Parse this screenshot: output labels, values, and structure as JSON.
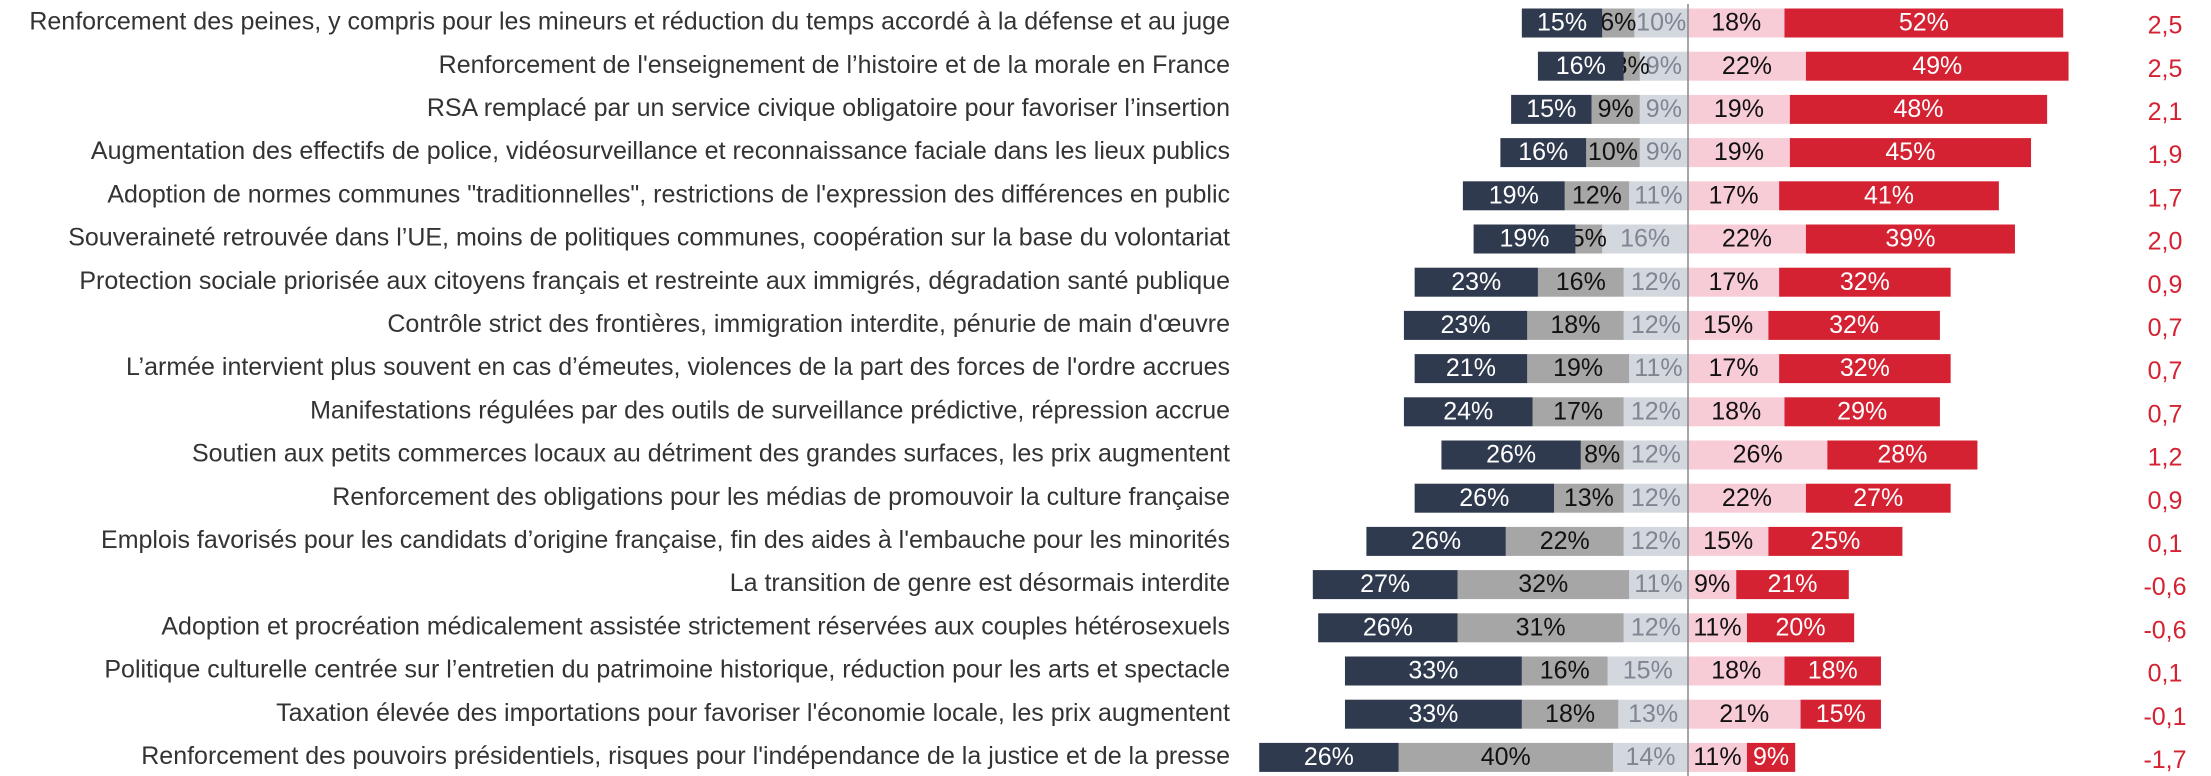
{
  "chart_data": {
    "type": "diverging_bar",
    "categories": [
      "Renforcement des peines, y compris pour les mineurs et réduction du temps accordé à la défense et au juge",
      "Renforcement de l'enseignement de l’histoire et de la morale en France",
      "RSA remplacé par un service civique obligatoire pour favoriser l’insertion",
      "Augmentation des effectifs de police, vidéosurveillance et reconnaissance faciale dans les lieux publics",
      "Adoption de normes communes \"traditionnelles\", restrictions de l'expression des différences en public",
      "Souveraineté retrouvée dans l’UE, moins de politiques communes, coopération sur la base du volontariat",
      "Protection sociale priorisée aux citoyens français et restreinte aux immigrés, dégradation santé publique",
      "Contrôle strict des frontières, immigration interdite, pénurie de main d'œuvre",
      "L’armée intervient plus souvent en cas d’émeutes, violences de la part des forces de l'ordre accrues",
      "Manifestations régulées par des outils de surveillance prédictive, répression accrue",
      "Soutien aux petits commerces locaux au détriment des grandes surfaces, les prix augmentent",
      "Renforcement des obligations pour les médias de promouvoir la culture française",
      "Emplois favorisés pour les candidats d’origine française, fin des aides à l'embauche pour les minorités",
      "La transition de genre est désormais interdite",
      "Adoption et procréation médicalement assistée strictement réservées aux couples hétérosexuels",
      "Politique culturelle centrée sur l’entretien du patrimoine historique, réduction pour les arts et spectacle",
      "Taxation élevée des importations pour favoriser l'économie locale, les prix augmentent",
      "Renforcement des pouvoirs présidentiels, risques pour l'indépendance de la justice et de la presse"
    ],
    "series": [
      {
        "color": "#2f3a4f",
        "label_color": "#ffffff",
        "values": [
          15,
          16,
          15,
          16,
          19,
          19,
          23,
          23,
          21,
          24,
          26,
          26,
          26,
          27,
          26,
          33,
          33,
          26
        ],
        "value_labels": [
          "15%",
          "16%",
          "15%",
          "16%",
          "19%",
          "19%",
          "23%",
          "23%",
          "21%",
          "24%",
          "26%",
          "26%",
          "26%",
          "27%",
          "26%",
          "33%",
          "33%",
          "26%"
        ]
      },
      {
        "color": "#a6a6a6",
        "label_color": "#111111",
        "values": [
          6,
          3,
          9,
          10,
          12,
          5,
          16,
          18,
          19,
          17,
          8,
          13,
          22,
          32,
          31,
          16,
          18,
          40
        ],
        "value_labels": [
          "6%",
          "3%",
          "9%",
          "10%",
          "12%",
          "5%",
          "16%",
          "18%",
          "19%",
          "17%",
          "8%",
          "13%",
          "22%",
          "32%",
          "31%",
          "16%",
          "18%",
          "40%"
        ]
      },
      {
        "color": "#d3d7de",
        "label_color": "#808591",
        "values": [
          10,
          9,
          9,
          9,
          11,
          16,
          12,
          12,
          11,
          12,
          12,
          12,
          12,
          11,
          12,
          15,
          13,
          14
        ],
        "value_labels": [
          "10%",
          "9%",
          "9%",
          "9%",
          "11%",
          "16%",
          "12%",
          "12%",
          "11%",
          "12%",
          "12%",
          "12%",
          "12%",
          "11%",
          "12%",
          "15%",
          "13%",
          "14%"
        ]
      },
      {
        "color": "#f8ccd7",
        "label_color": "#111111",
        "values": [
          18,
          22,
          19,
          19,
          17,
          22,
          17,
          15,
          17,
          18,
          26,
          22,
          15,
          9,
          11,
          18,
          21,
          11
        ],
        "value_labels": [
          "18%",
          "22%",
          "19%",
          "19%",
          "17%",
          "22%",
          "17%",
          "15%",
          "17%",
          "18%",
          "26%",
          "22%",
          "15%",
          "9%",
          "11%",
          "18%",
          "21%",
          "11%"
        ]
      },
      {
        "color": "#d42232",
        "label_color": "#ffffff",
        "values": [
          52,
          49,
          48,
          45,
          41,
          39,
          32,
          32,
          32,
          29,
          28,
          27,
          25,
          21,
          20,
          18,
          15,
          9
        ],
        "value_labels": [
          "52%",
          "49%",
          "48%",
          "45%",
          "41%",
          "39%",
          "32%",
          "32%",
          "32%",
          "29%",
          "28%",
          "27%",
          "25%",
          "21%",
          "20%",
          "18%",
          "15%",
          "9%"
        ]
      }
    ],
    "scores": [
      "2,5",
      "2,5",
      "2,1",
      "1,9",
      "1,7",
      "2,0",
      "0,9",
      "0,7",
      "0,7",
      "0,7",
      "1,2",
      "0,9",
      "0,1",
      "-0,6",
      "-0,6",
      "0,1",
      "-0,1",
      "-1,7"
    ],
    "score_color": "#d42232"
  }
}
